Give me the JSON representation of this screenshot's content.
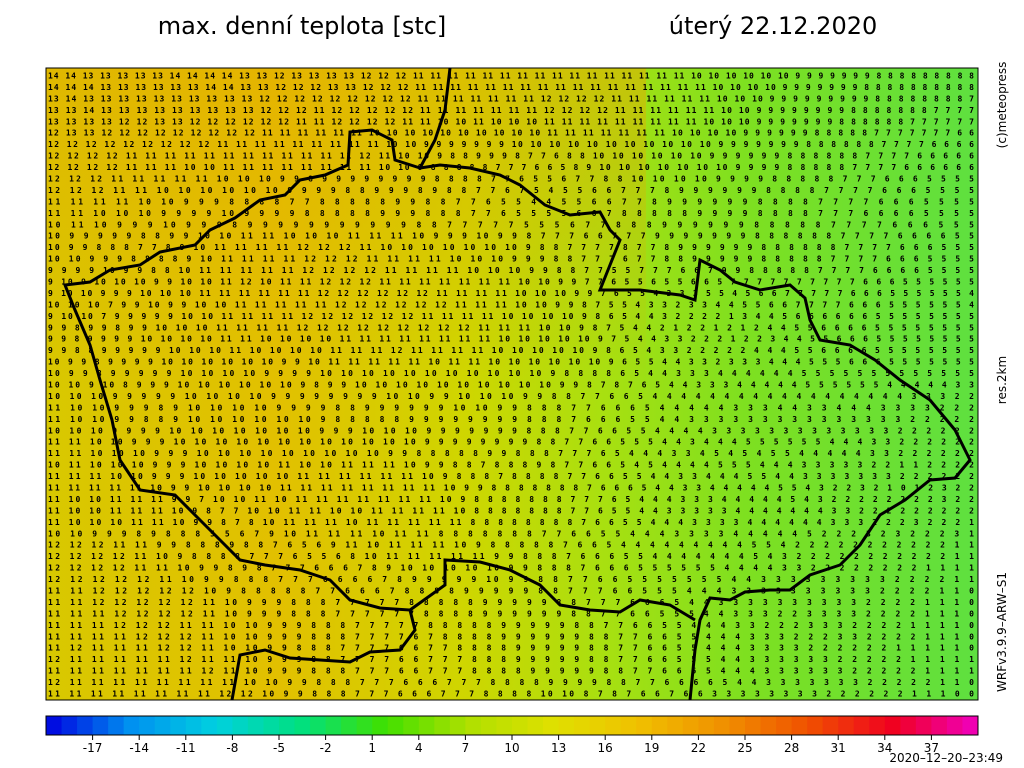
{
  "header": {
    "title": "max. denní teplota [stc]",
    "date": "úterý 22.12.2020"
  },
  "side": {
    "copyright": "(c)meteopress",
    "resolution": "res.2km",
    "model": "WRFv3.9.9–ARW–S1"
  },
  "footer": {
    "timestamp": "2020–12–20–23:49"
  },
  "grid": {
    "rows": [
      "14 14 13 13 13 13 13 14 14 14 14 13 13 12 13 13 13 13 12 12 12 11 11 11 11 11 11 11 11 11 11 11 11 11 11 11 11 10 10 10 10 10 10 9 9 9 9 9 9 9 8 8 8 8 8 8 8 8 8",
      "14 14 14 13 13 13 13 13 13 14 14 13 13 12 12 12 13 13 12 12 12 11 11 11 11 11 11 11 11 11 11 11 11 11 11 11 11 11 10 10 10 10 9 9 9 9 9 9 9 8 8 8 8 8 8 8 8 8 8",
      "13 14 13 13 13 13 13 13 13 13 13 13 12 12 12 12 12 12 12 12 12 11 11 11 11 11 11 11 12 12 12 12 11 11 11 11 11 11 10 10 10 9 9 9 9 9 9 9 9 9 8 8 8 8 8 8 8 8 7",
      "13 13 14 13 13 13 13 13 13 13 13 13 12 12 12 11 12 12 12 12 12 11 11 11 11 11 11 11 12 12 12 12 11 11 11 11 11 11 10 10 9 9 9 9 9 9 9 9 8 8 8 8 8 8 8 7 7 7 7",
      "13 13 13 13 12 12 13 13 12 12 12 12 12 12 11 11 12 12 12 12 11 11 10 10 11 10 10 10 11 11 11 11 11 11 11 11 11 10 10 10 9 9 9 9 9 9 9 8 8 8 8 8 8 7 7 7 7 7 7",
      "12 13 13 12 12 12 12 12 12 12 12 12 11 11 11 11 11 11 10 10 10 10 10 10 10 10 10 10 11 11 11 11 11 11 11 10 10 10 10 9 9 9 9 9 9 8 8 8 8 8 7 7 7 7 7 7 7 6 6",
      "12 12 12 12 12 12 12 12 12 11 11 11 11 11 11 11 11 11 10 10 9 9 9 9 9 9 9 10 10 10 10 10 10 10 10 10 10 10 9 9 9 9 9 9 9 8 8 8 8 8 8 7 7 7 7 6 6 6 6",
      "12 12 12 12 11 11 11 11 11 11 11 11 11 11 11 11 12 11 10 10 9 8 8 9 9 9 8 7 7 6 8 8 10 10 10 10 10 10 9 9 9 9 9 9 8 8 8 8 8 8 7 7 7 7 6 6 6 6 6",
      "12 12 12 12 11 11 11 10 10 11 11 11 11 11 11 11 11 10 10 9 8 8 8 8 8 7 7 7 6 6 5 8 9 10 10 10 10 10 10 10 9 9 9 9 8 8 8 8 8 7 7 7 7 6 6 6 6 6 6",
      "12 12 12 11 11 11 11 11 10 10 10 9 9 8 9 9 9 9 9 9 9 9 8 8 8 8 7 7 6 5 5 6 7 7 8 8 10 10 10 10 9 9 9 9 8 8 8 8 8 7 7 7 6 6 6 5 5 5 5",
      "12 12 12 11 11 10 10 10 10 10 10 9 9 9 9 8 8 9 9 9 8 9 8 8 7 7 6 7 5 4 5 5 6 6 7 7 7 8 9 9 9 9 9 9 8 8 8 8 7 7 7 7 6 6 6 5 5 5 5",
      "11 11 11 11 10 10 9 9 9 8 8 8 8 7 7 8 8 8 8 8 9 9 8 8 7 7 6 5 5 4 4 5 5 6 6 7 7 8 9 9 9 9 9 9 8 8 8 8 7 7 7 7 6 6 6 5 5 5 5",
      "11 11 10 10 10 9 9 9 9 10 9 9 9 9 8 8 8 8 8 9 9 9 8 8 8 7 7 6 5 5 5 5 6 6 7 8 8 8 8 8 9 9 9 9 8 8 8 8 7 7 7 6 6 6 6 5 5 5 5",
      "10 11 10 9 9 9 10 9 9 9 8 9 9 9 9 9 9 9 9 9 9 9 8 8 7 7 7 7 7 5 5 5 6 7 7 8 8 8 9 9 9 9 9 9 8 8 8 8 8 7 7 7 7 6 6 6 5 5 5",
      "10 9 9 9 9 9 8 8 9 9 10 10 11 11 10 10 10 11 11 11 10 9 9 9 10 9 9 8 7 7 7 6 6 7 7 7 9 9 9 9 9 9 9 8 8 8 8 8 8 7 7 7 7 6 6 6 6 5 5",
      "10 9 9 8 8 8 7 7 8 9 10 11 11 11 11 12 12 12 11 10 10 10 10 10 10 10 9 8 8 7 7 7 7 8 7 7 8 9 9 9 9 9 9 8 8 8 8 8 8 7 7 7 7 6 6 6 5 5 5",
      "10 10 9 9 9 8 8 8 8 9 10 11 11 11 11 12 12 12 11 11 11 11 10 10 10 9 9 9 8 8 7 7 7 6 7 7 8 8 9 9 9 9 9 8 8 8 8 8 7 7 7 7 6 6 6 5 5 5 5",
      "9 9 9 9 10 9 9 8 8 10 11 11 11 11 11 12 12 12 12 11 11 11 11 10 10 10 9 9 8 8 7 7 5 5 7 7 7 6 6 7 9 9 8 8 8 8 8 7 7 7 7 6 6 6 6 5 5 5 5",
      "9 10 9 10 10 10 9 9 10 10 11 12 10 11 11 12 12 12 11 11 11 11 11 11 11 10 10 9 9 7 7 6 5 5 6 5 5 6 6 5 7 7 7 7 7 7 7 7 7 7 6 6 6 5 5 5 5 5 5",
      "9 10 10 9 9 9 10 10 10 11 11 11 11 11 11 12 12 12 12 12 12 11 11 11 11 10 10 10 9 9 7 6 5 5 4 3 3 3 5 5 4 5 6 6 7 7 7 7 7 6 6 6 5 5 5 5 5 5 4",
      "10 10 10 7 9 9 10 9 9 10 10 11 11 11 11 11 12 12 12 12 12 12 11 11 11 10 10 9 9 8 7 5 5 4 3 3 2 3 3 4 4 5 5 6 6 7 7 7 7 6 6 6 5 5 5 5 5 5 4",
      "9 10 10 7 9 9 9 9 9 10 10 11 11 11 11 12 12 12 12 12 12 11 11 11 11 10 10 10 10 9 8 6 5 4 4 3 2 2 2 2 1 3 4 4 5 6 6 6 6 6 6 5 5 5 5 5 5 5 5",
      "9 9 8 9 9 8 9 9 10 10 10 11 11 11 11 12 12 12 12 12 12 12 12 12 11 11 11 10 10 9 8 7 5 4 4 2 1 2 2 1 2 1 2 4 4 5 5 6 6 6 6 5 5 5 5 5 5 5 5",
      "9 9 8 9 9 9 9 10 10 10 10 11 11 10 10 10 10 11 11 11 11 11 11 11 11 10 10 10 10 10 9 7 5 4 4 3 3 2 2 2 1 2 2 3 4 4 5 5 6 6 6 5 5 5 5 5 5 5 5",
      "9 9 8 8 9 9 9 9 9 10 10 10 11 10 10 10 10 11 11 11 12 11 11 11 11 10 10 10 10 10 9 8 6 5 4 3 3 2 2 2 2 2 4 4 4 5 5 6 6 6 6 5 5 5 5 5 5 5 5",
      "10 9 9 8 9 9 9 9 10 10 10 10 10 10 9 9 10 11 11 11 11 11 10 11 11 10 10 10 10 10 10 9 6 5 5 4 4 3 3 2 3 3 3 4 4 4 5 5 5 6 6 6 5 5 5 5 5 5 5",
      "10 9 9 8 9 9 9 9 9 10 10 10 10 9 9 9 9 10 10 10 10 10 10 10 10 10 10 10 9 8 8 8 8 6 5 4 4 3 3 3 4 4 4 4 4 4 5 5 5 5 5 5 5 5 5 5 5 5 5",
      "10 10 9 10 8 9 9 9 10 10 10 10 10 10 9 8 9 9 10 10 10 10 10 10 10 10 10 10 9 9 8 7 8 7 6 5 4 4 3 3 3 4 4 4 4 4 5 5 5 5 5 5 4 4 4 4 4 3 3",
      "10 10 10 9 9 9 9 9 10 10 10 10 9 9 9 9 9 9 9 9 10 10 9 9 10 10 10 9 9 8 8 7 7 6 6 5 4 4 4 4 4 4 4 4 4 4 4 4 4 4 4 4 4 4 3 3 3 2 2",
      "11 10 10 9 9 9 8 9 10 10 10 10 9 9 9 9 8 8 9 9 9 9 9 9 10 10 9 9 8 8 8 7 7 6 6 6 5 4 4 4 4 4 3 3 3 4 4 3 3 4 4 4 3 3 3 3 2 2 2",
      "11 10 10 9 9 8 8 9 10 10 10 10 10 10 9 8 8 8 8 8 9 9 9 9 9 9 9 9 8 8 8 7 6 6 6 5 5 4 4 3 3 3 3 3 3 3 3 3 3 3 3 3 3 3 2 2 2 2 2",
      "10 10 10 9 9 9 9 10 10 10 10 10 10 10 9 9 9 10 10 10 9 9 9 9 9 9 9 8 8 8 7 7 6 6 5 5 4 4 4 4 3 3 3 3 3 3 3 3 3 3 3 3 3 2 2 2 2 2 2",
      "11 11 10 10 9 9 9 10 10 10 10 10 10 10 10 10 10 10 10 9 9 9 9 9 9 9 9 8 8 7 7 6 6 5 5 5 4 4 3 4 4 4 5 5 5 5 5 5 4 4 4 3 3 2 2 2 2 2 2",
      "11 11 10 10 10 9 9 9 10 10 10 10 10 10 10 10 10 9 9 8 8 8 8 8 9 9 8 8 8 7 7 7 6 5 4 4 4 3 3 4 5 4 5 4 5 5 4 4 4 4 4 3 3 2 2 2 2 2 2",
      "10 11 10 10 10 9 9 9 10 10 10 10 11 10 10 11 11 11 10 9 9 8 8 7 8 8 8 9 8 7 7 6 6 5 4 5 4 4 4 4 5 5 5 4 4 4 3 3 3 3 3 2 2 1 1 2 2 2 2",
      "11 11 11 10 10 9 9 9 10 10 10 10 10 11 11 11 11 11 11 10 9 8 8 8 7 8 8 8 8 7 7 6 6 5 5 4 4 3 3 4 4 4 5 5 4 4 3 3 3 3 3 3 3 2 2 2 2 2 2",
      "11 11 11 11 11 10 9 9 10 10 10 10 11 11 11 11 11 11 11 11 10 9 9 8 8 8 8 8 8 8 7 6 6 6 5 4 4 3 3 4 4 4 4 4 5 5 4 3 2 2 3 2 1 0 1 2 3 2 2",
      "11 10 10 11 11 11 9 9 7 10 10 11 10 11 11 11 11 11 11 11 10 9 8 8 8 8 8 8 8 7 7 7 6 5 4 4 4 3 3 3 4 4 4 4 4 5 4 3 2 2 2 2 2 2 2 2 3 2 2",
      "11 10 10 11 11 11 10 9 8 7 7 10 10 11 11 10 10 11 11 11 11 10 8 8 8 8 8 8 8 7 7 6 5 5 4 4 3 3 3 3 3 4 4 4 4 4 4 4 3 3 2 2 2 2 2 2 2 2 2",
      "11 10 10 10 11 11 10 9 9 8 7 8 10 11 11 11 10 11 11 11 11 11 8 8 8 8 8 8 8 8 7 6 6 5 5 4 4 4 3 3 3 3 4 4 4 4 4 4 3 3 3 2 2 2 3 2 2 2 1",
      "10 10 9 9 9 8 9 8 8 8 5 5 6 7 9 10 11 11 11 10 11 11 8 8 8 8 8 8 8 7 7 6 6 5 5 4 4 4 3 3 3 3 4 4 4 4 4 5 2 2 2 3 2 3 2 2 2 3 1",
      "12 12 12 11 11 9 9 8 8 8 9 8 8 7 6 5 6 9 11 10 11 11 11 10 9 8 8 8 8 8 7 6 6 5 4 4 4 4 4 4 4 4 4 5 5 4 2 2 2 2 2 2 2 2 2 2 2 1 1",
      "12 12 12 12 11 10 9 8 8 8 8 7 7 7 6 5 5 6 8 10 11 11 11 11 11 9 9 8 8 8 7 6 6 6 5 5 4 4 4 4 4 4 4 5 4 3 2 2 2 2 2 2 2 2 2 2 2 1 1",
      "12 12 12 12 11 11 10 9 9 8 9 8 7 7 7 6 6 6 7 8 9 10 10 10 10 10 9 9 8 8 8 7 6 6 6 5 5 5 5 5 5 4 4 4 4 3 3 2 2 2 2 2 2 2 2 1 1 1 1",
      "12 12 12 12 12 11 10 9 9 8 8 8 7 7 7 6 6 6 6 7 8 9 9 9 9 9 10 9 9 8 8 7 7 6 6 5 5 5 5 5 5 5 4 4 3 3 3 3 3 3 3 3 3 2 2 2 2 1 1",
      "11 11 12 12 12 12 12 10 9 8 8 8 8 8 7 7 6 6 6 7 8 8 8 8 9 9 9 9 9 8 8 7 7 7 6 6 5 5 5 4 4 4 3 3 3 3 3 3 3 3 3 3 2 2 2 2 1 1 0",
      "11 11 12 12 12 12 12 11 10 9 9 9 8 8 8 7 7 7 7 7 8 8 8 8 8 9 9 9 9 9 8 8 7 7 7 6 6 6 5 4 4 3 3 3 3 3 3 3 3 3 3 2 2 2 2 1 1 1 0",
      "11 11 11 12 12 12 12 11 10 9 9 9 8 8 8 7 7 7 7 7 7 8 8 8 8 9 9 9 9 9 9 8 8 7 7 6 6 5 5 5 4 4 3 3 3 2 2 3 3 3 3 2 2 2 2 1 1 1 0",
      "11 11 11 12 12 12 11 11 10 10 9 9 9 8 8 8 7 7 7 7 7 8 8 8 8 8 9 9 9 9 9 8 8 7 7 6 6 5 5 4 4 4 3 3 2 2 2 3 3 3 2 2 2 2 1 1 1 1 0",
      "11 11 11 11 12 12 12 11 10 10 9 9 9 8 8 8 7 7 7 7 6 7 8 8 8 8 9 9 9 9 9 9 8 8 7 7 6 6 5 5 4 4 4 3 3 3 2 2 2 3 3 2 2 2 2 1 1 1 0",
      "11 12 11 11 11 12 12 11 10 10 9 9 8 8 8 7 7 7 7 6 6 7 7 8 8 8 8 9 9 9 9 9 8 8 7 7 6 6 5 5 4 4 4 3 3 3 3 2 2 2 2 2 2 1 1 1 1 1 0",
      "12 11 11 11 11 11 12 11 11 10 9 9 9 8 8 7 7 7 7 6 6 7 7 7 8 8 8 9 9 9 9 9 8 8 7 7 6 6 5 5 5 4 4 3 3 3 3 3 3 2 2 2 2 2 1 1 1 1 1",
      "11 11 11 11 11 11 11 12 11 10 9 9 9 8 8 8 7 7 7 6 6 7 7 7 8 8 8 8 9 9 9 9 9 8 8 7 7 6 6 6 5 4 4 4 3 3 3 3 3 3 2 2 2 2 2 1 1 1 1",
      "12 11 11 11 11 11 11 11 11 10 10 9 9 8 8 8 7 7 7 6 6 6 7 7 7 8 8 8 8 9 9 9 9 8 8 7 7 6 6 6 6 5 4 4 3 3 3 3 3 3 3 2 2 2 2 2 1 1 0",
      "11 11 11 11 11 11 11 11 12 12 10 9 9 8 8 8 7 7 7 6 6 6 7 7 7 8 8 8 8 10 10 8 7 8 7 6 6 7 6 6 3 3 3 3 3 3 3 3 2 2 2 2 2 2 1 1 1 0 0"
    ]
  },
  "colorbar": {
    "range": [
      -20,
      40
    ],
    "step": 1,
    "ticks": [
      -17,
      -14,
      -11,
      -8,
      -5,
      -2,
      1,
      4,
      7,
      10,
      13,
      16,
      19,
      22,
      25,
      28,
      31,
      34,
      37
    ],
    "stops": [
      "#0000e0",
      "#0090f0",
      "#00d0e0",
      "#00e080",
      "#40e000",
      "#b0e000",
      "#e0e000",
      "#f0c000",
      "#f09000",
      "#f05000",
      "#f00020",
      "#f000c0"
    ]
  }
}
